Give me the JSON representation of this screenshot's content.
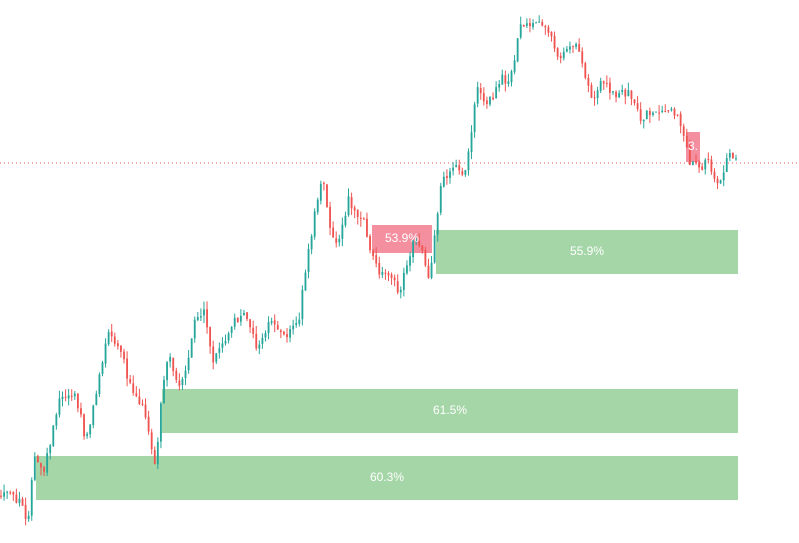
{
  "colors": {
    "background": "#ffffff",
    "bullish": "#26a69a",
    "bearish": "#ef5350",
    "support_zone": "#a5d6a7",
    "resistance_zone": "#f48fa0",
    "price_line": "#ef5350",
    "zone_text": "#ffffff"
  },
  "chart_data": {
    "type": "candlestick",
    "ylim": [
      0,
      543
    ],
    "candle_count": 240,
    "current_price": 163,
    "price_path": [
      [
        0,
        497
      ],
      [
        10,
        493
      ],
      [
        22,
        505
      ],
      [
        28,
        520
      ],
      [
        34,
        460
      ],
      [
        44,
        470
      ],
      [
        60,
        400
      ],
      [
        75,
        395
      ],
      [
        86,
        440
      ],
      [
        108,
        335
      ],
      [
        120,
        350
      ],
      [
        130,
        385
      ],
      [
        140,
        400
      ],
      [
        148,
        430
      ],
      [
        156,
        470
      ],
      [
        162,
        390
      ],
      [
        168,
        355
      ],
      [
        178,
        385
      ],
      [
        186,
        370
      ],
      [
        194,
        320
      ],
      [
        204,
        310
      ],
      [
        212,
        360
      ],
      [
        222,
        345
      ],
      [
        232,
        325
      ],
      [
        244,
        310
      ],
      [
        250,
        330
      ],
      [
        258,
        350
      ],
      [
        270,
        320
      ],
      [
        284,
        335
      ],
      [
        298,
        325
      ],
      [
        306,
        265
      ],
      [
        314,
        220
      ],
      [
        322,
        175
      ],
      [
        330,
        230
      ],
      [
        338,
        250
      ],
      [
        348,
        200
      ],
      [
        356,
        210
      ],
      [
        364,
        220
      ],
      [
        372,
        255
      ],
      [
        380,
        275
      ],
      [
        390,
        270
      ],
      [
        398,
        295
      ],
      [
        408,
        265
      ],
      [
        414,
        240
      ],
      [
        422,
        245
      ],
      [
        428,
        285
      ],
      [
        436,
        230
      ],
      [
        442,
        180
      ],
      [
        450,
        170
      ],
      [
        458,
        165
      ],
      [
        464,
        175
      ],
      [
        470,
        140
      ],
      [
        476,
        90
      ],
      [
        486,
        100
      ],
      [
        494,
        95
      ],
      [
        502,
        75
      ],
      [
        510,
        85
      ],
      [
        518,
        35
      ],
      [
        526,
        18
      ],
      [
        534,
        28
      ],
      [
        542,
        25
      ],
      [
        550,
        35
      ],
      [
        558,
        60
      ],
      [
        566,
        45
      ],
      [
        576,
        45
      ],
      [
        586,
        80
      ],
      [
        594,
        100
      ],
      [
        602,
        75
      ],
      [
        612,
        95
      ],
      [
        622,
        90
      ],
      [
        632,
        95
      ],
      [
        640,
        120
      ],
      [
        650,
        110
      ],
      [
        660,
        115
      ],
      [
        670,
        110
      ],
      [
        680,
        120
      ],
      [
        690,
        165
      ],
      [
        700,
        170
      ],
      [
        710,
        160
      ],
      [
        716,
        190
      ],
      [
        722,
        175
      ],
      [
        730,
        150
      ],
      [
        736,
        163
      ]
    ],
    "zones": [
      {
        "kind": "resistance",
        "label": "53.9%",
        "x_start": 372,
        "x_end": 432,
        "y_top": 225,
        "y_bottom": 253
      },
      {
        "kind": "support",
        "label": "55.9%",
        "x_start": 436,
        "x_end": 738,
        "y_top": 230,
        "y_bottom": 274
      },
      {
        "kind": "resistance",
        "label": "3.",
        "x_start": 686,
        "x_end": 700,
        "y_top": 132,
        "y_bottom": 162
      },
      {
        "kind": "support",
        "label": "61.5%",
        "x_start": 162,
        "x_end": 738,
        "y_top": 389,
        "y_bottom": 433
      },
      {
        "kind": "support",
        "label": "60.3%",
        "x_start": 36,
        "x_end": 738,
        "y_top": 456,
        "y_bottom": 500
      }
    ]
  }
}
